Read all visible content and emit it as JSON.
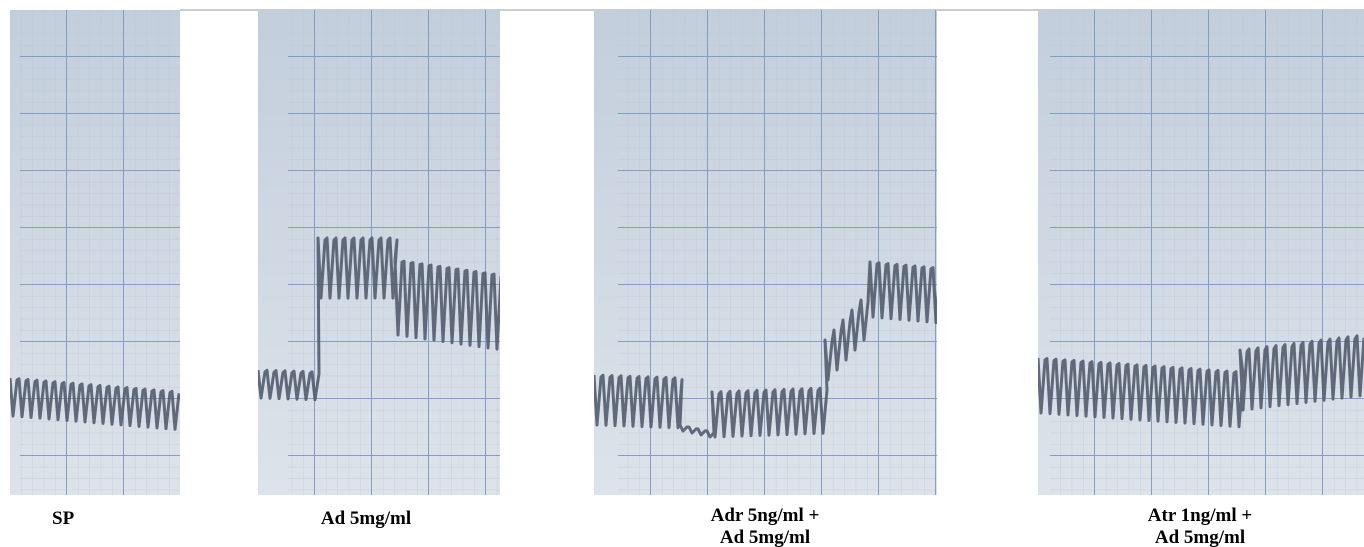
{
  "panels": [
    {
      "label": [
        "SP"
      ]
    },
    {
      "label": [
        "Ad 5mg/ml"
      ]
    },
    {
      "label": [
        "Adr 5ng/ml +",
        "Ad 5mg/ml"
      ]
    },
    {
      "label": [
        "Atr 1ng/ml +",
        "Ad 5mg/ml"
      ]
    }
  ]
}
